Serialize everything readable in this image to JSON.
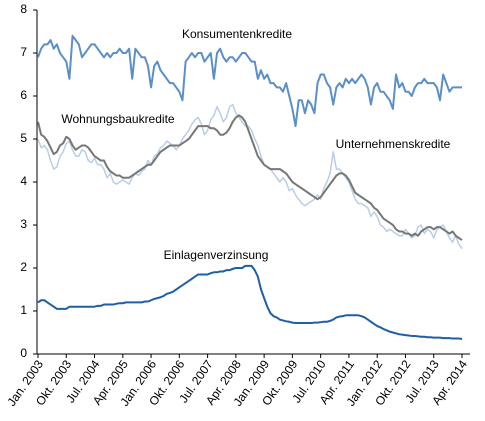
{
  "chart_data": {
    "type": "line",
    "categories": [
      "Jan. 2003",
      null,
      null,
      null,
      null,
      null,
      null,
      null,
      null,
      "Okt. 2003",
      null,
      null,
      null,
      null,
      null,
      null,
      null,
      null,
      "Jul. 2004",
      null,
      null,
      null,
      null,
      null,
      null,
      null,
      null,
      "Apr. 2005",
      null,
      null,
      null,
      null,
      null,
      null,
      null,
      null,
      "Jan. 2006",
      null,
      null,
      null,
      null,
      null,
      null,
      null,
      null,
      "Okt. 2006",
      null,
      null,
      null,
      null,
      null,
      null,
      null,
      null,
      "Jul. 2007",
      null,
      null,
      null,
      null,
      null,
      null,
      null,
      null,
      "Apr. 2008",
      null,
      null,
      null,
      null,
      null,
      null,
      null,
      null,
      "Jan. 2009",
      null,
      null,
      null,
      null,
      null,
      null,
      null,
      null,
      "Okt. 2009",
      null,
      null,
      null,
      null,
      null,
      null,
      null,
      null,
      "Jul. 2010",
      null,
      null,
      null,
      null,
      null,
      null,
      null,
      null,
      "Apr. 2011",
      null,
      null,
      null,
      null,
      null,
      null,
      null,
      null,
      "Jan. 2012",
      null,
      null,
      null,
      null,
      null,
      null,
      null,
      null,
      "Okt. 2012",
      null,
      null,
      null,
      null,
      null,
      null,
      null,
      null,
      "Jul. 2013",
      null,
      null,
      null,
      null,
      null,
      null,
      null,
      null,
      "Apr. 2014"
    ],
    "series": [
      {
        "name": "Konsumentenkredite",
        "color": "#5b8fc7",
        "values": [
          6.9,
          7.1,
          7.2,
          7.2,
          7.3,
          7.1,
          7.2,
          7.0,
          6.9,
          6.8,
          6.4,
          7.4,
          7.3,
          7.2,
          6.9,
          7.0,
          7.1,
          7.2,
          7.2,
          7.1,
          7.0,
          6.9,
          7.0,
          6.9,
          7.0,
          7.0,
          7.1,
          7.0,
          7.0,
          7.1,
          6.4,
          7.1,
          7.0,
          6.9,
          6.9,
          6.7,
          6.2,
          6.7,
          6.8,
          6.6,
          6.5,
          6.4,
          6.3,
          6.3,
          6.2,
          6.1,
          5.9,
          6.8,
          6.9,
          7.0,
          6.9,
          7.0,
          7.0,
          6.8,
          6.9,
          7.0,
          6.4,
          7.0,
          7.1,
          6.9,
          6.8,
          6.9,
          6.9,
          6.8,
          6.9,
          7.0,
          7.0,
          6.9,
          6.8,
          6.8,
          6.4,
          6.6,
          6.4,
          6.5,
          6.3,
          6.3,
          6.2,
          6.2,
          6.1,
          6.3,
          6.0,
          5.7,
          5.3,
          5.9,
          5.9,
          5.6,
          5.9,
          5.8,
          5.6,
          6.3,
          6.5,
          6.5,
          6.3,
          6.2,
          5.8,
          6.2,
          6.3,
          6.2,
          6.4,
          6.3,
          6.4,
          6.3,
          6.4,
          6.5,
          6.4,
          6.2,
          5.8,
          6.2,
          6.3,
          6.1,
          6.1,
          6.0,
          5.9,
          5.7,
          6.5,
          6.2,
          6.3,
          6.1,
          6.1,
          6.0,
          6.2,
          6.3,
          6.3,
          6.4,
          6.3,
          6.3,
          6.3,
          6.2,
          5.9,
          6.5,
          6.3,
          6.1,
          6.2,
          6.2,
          6.2,
          6.2
        ]
      },
      {
        "name": "Unternehmenskredite",
        "color": "#b9cde8",
        "values": [
          5.0,
          4.8,
          4.85,
          4.75,
          4.5,
          4.3,
          4.35,
          4.6,
          4.7,
          4.9,
          4.95,
          4.75,
          4.6,
          4.6,
          4.75,
          4.7,
          4.5,
          4.45,
          4.55,
          4.4,
          4.4,
          4.3,
          4.1,
          4.2,
          4.0,
          3.95,
          4.0,
          4.05,
          4.0,
          3.95,
          4.1,
          4.2,
          4.15,
          4.25,
          4.3,
          4.5,
          4.4,
          4.6,
          4.65,
          4.8,
          4.85,
          4.95,
          4.9,
          4.85,
          4.75,
          4.85,
          5.0,
          5.1,
          5.2,
          5.35,
          5.45,
          5.5,
          5.35,
          5.1,
          5.2,
          5.45,
          5.55,
          5.75,
          5.6,
          5.4,
          5.5,
          5.75,
          5.8,
          5.6,
          5.5,
          5.4,
          5.3,
          5.3,
          5.2,
          5.0,
          4.85,
          4.6,
          4.4,
          4.35,
          4.3,
          4.2,
          4.1,
          4.0,
          4.1,
          4.0,
          3.8,
          3.85,
          3.7,
          3.6,
          3.5,
          3.45,
          3.5,
          3.55,
          3.6,
          3.7,
          3.6,
          3.85,
          4.0,
          4.2,
          4.7,
          4.3,
          4.3,
          4.2,
          4.1,
          4.0,
          3.8,
          3.6,
          3.5,
          3.5,
          3.45,
          3.4,
          3.2,
          3.3,
          3.2,
          3.0,
          2.95,
          2.85,
          2.9,
          2.85,
          2.8,
          2.75,
          2.75,
          2.9,
          2.8,
          2.7,
          2.75,
          2.95,
          3.0,
          2.8,
          2.9,
          2.85,
          2.7,
          2.9,
          2.95,
          3.0,
          2.85,
          2.7,
          2.6,
          2.75,
          2.55,
          2.45
        ]
      },
      {
        "name": "Wohnungsbaukredite",
        "color": "#777777",
        "values": [
          5.4,
          5.1,
          5.05,
          4.95,
          4.8,
          4.65,
          4.7,
          4.85,
          4.9,
          5.05,
          5.0,
          4.85,
          4.75,
          4.8,
          4.85,
          4.85,
          4.8,
          4.7,
          4.6,
          4.55,
          4.5,
          4.5,
          4.35,
          4.25,
          4.2,
          4.15,
          4.15,
          4.1,
          4.1,
          4.1,
          4.15,
          4.2,
          4.25,
          4.3,
          4.35,
          4.4,
          4.4,
          4.5,
          4.6,
          4.7,
          4.75,
          4.8,
          4.85,
          4.85,
          4.85,
          4.85,
          4.9,
          4.95,
          5.0,
          5.1,
          5.2,
          5.3,
          5.3,
          5.3,
          5.3,
          5.25,
          5.25,
          5.2,
          5.1,
          5.1,
          5.15,
          5.25,
          5.4,
          5.5,
          5.55,
          5.5,
          5.4,
          5.2,
          5.0,
          4.8,
          4.6,
          4.5,
          4.4,
          4.35,
          4.3,
          4.3,
          4.3,
          4.3,
          4.25,
          4.2,
          4.1,
          4.0,
          3.95,
          3.9,
          3.85,
          3.8,
          3.75,
          3.7,
          3.65,
          3.6,
          3.65,
          3.75,
          3.85,
          3.95,
          4.05,
          4.15,
          4.2,
          4.2,
          4.15,
          4.05,
          3.9,
          3.75,
          3.7,
          3.65,
          3.6,
          3.55,
          3.5,
          3.4,
          3.35,
          3.25,
          3.15,
          3.1,
          3.05,
          3.0,
          2.9,
          2.85,
          2.85,
          2.8,
          2.8,
          2.75,
          2.8,
          2.75,
          2.85,
          2.9,
          2.95,
          2.95,
          2.9,
          2.95,
          2.95,
          2.9,
          2.85,
          2.8,
          2.85,
          2.75,
          2.7,
          2.65
        ]
      },
      {
        "name": "Einlagenverzinsung",
        "color": "#1f5fa6",
        "values": [
          1.2,
          1.25,
          1.25,
          1.2,
          1.15,
          1.1,
          1.05,
          1.05,
          1.05,
          1.05,
          1.1,
          1.1,
          1.1,
          1.1,
          1.1,
          1.1,
          1.1,
          1.1,
          1.1,
          1.12,
          1.12,
          1.15,
          1.15,
          1.15,
          1.15,
          1.17,
          1.18,
          1.18,
          1.2,
          1.2,
          1.2,
          1.2,
          1.2,
          1.2,
          1.22,
          1.22,
          1.25,
          1.28,
          1.3,
          1.32,
          1.35,
          1.4,
          1.42,
          1.45,
          1.5,
          1.55,
          1.6,
          1.65,
          1.7,
          1.75,
          1.8,
          1.85,
          1.85,
          1.85,
          1.85,
          1.88,
          1.9,
          1.9,
          1.92,
          1.92,
          1.95,
          1.95,
          1.98,
          2.0,
          2.0,
          2.0,
          2.05,
          2.05,
          2.05,
          1.95,
          1.8,
          1.5,
          1.3,
          1.1,
          0.95,
          0.88,
          0.85,
          0.8,
          0.78,
          0.76,
          0.75,
          0.73,
          0.72,
          0.72,
          0.72,
          0.72,
          0.72,
          0.72,
          0.73,
          0.73,
          0.74,
          0.75,
          0.75,
          0.77,
          0.8,
          0.85,
          0.87,
          0.88,
          0.9,
          0.9,
          0.9,
          0.9,
          0.9,
          0.88,
          0.85,
          0.8,
          0.75,
          0.7,
          0.65,
          0.62,
          0.58,
          0.55,
          0.52,
          0.5,
          0.48,
          0.46,
          0.45,
          0.44,
          0.43,
          0.42,
          0.42,
          0.41,
          0.4,
          0.4,
          0.39,
          0.39,
          0.38,
          0.38,
          0.38,
          0.37,
          0.37,
          0.37,
          0.36,
          0.36,
          0.36,
          0.35
        ]
      }
    ],
    "ylim": [
      0,
      8
    ],
    "yticks": [
      0,
      1,
      2,
      3,
      4,
      5,
      6,
      7,
      8
    ],
    "grid": false
  }
}
